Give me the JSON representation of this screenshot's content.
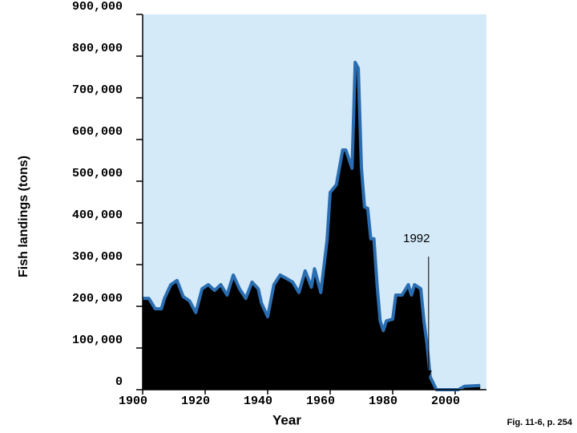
{
  "chart_data": {
    "type": "area",
    "ylabel": "Fish landings (tons)",
    "xlabel": "Year",
    "caption": "Fig. 11-6, p. 254",
    "x": [
      1900,
      1902,
      1904,
      1906,
      1907,
      1909,
      1911,
      1913,
      1915,
      1917,
      1919,
      1921,
      1923,
      1925,
      1927,
      1929,
      1931,
      1933,
      1935,
      1937,
      1938,
      1940,
      1942,
      1944,
      1946,
      1948,
      1950,
      1952,
      1954,
      1955,
      1957,
      1959,
      1960,
      1962,
      1964,
      1965,
      1967,
      1968,
      1969,
      1970,
      1971,
      1972,
      1973,
      1974,
      1975,
      1976,
      1977,
      1978,
      1980,
      1981,
      1983,
      1985,
      1986,
      1987,
      1989,
      1990,
      1991,
      1992,
      1994,
      2000,
      2001,
      2003,
      2008
    ],
    "values": [
      219000,
      219000,
      194000,
      194000,
      219000,
      252000,
      262000,
      223000,
      213000,
      185000,
      242000,
      252000,
      238000,
      252000,
      227000,
      275000,
      242000,
      219000,
      258000,
      242000,
      208000,
      175000,
      252000,
      275000,
      267000,
      258000,
      233000,
      285000,
      246000,
      290000,
      233000,
      358000,
      473000,
      492000,
      575000,
      575000,
      531000,
      785000,
      771000,
      531000,
      438000,
      435000,
      362000,
      362000,
      252000,
      165000,
      142000,
      165000,
      169000,
      227000,
      227000,
      252000,
      227000,
      252000,
      242000,
      165000,
      108000,
      31000,
      0,
      0,
      0,
      8000,
      10000
    ],
    "color": "#000000",
    "line_color": "#2a6db0",
    "background": "#d4eaf9",
    "xlim": [
      1900,
      2010
    ],
    "ylim": [
      0,
      900000
    ],
    "xticks": [
      1900,
      1920,
      1940,
      1960,
      1980,
      2000
    ],
    "yticks": [
      0,
      {
        "value": 100000,
        "label": "100,000"
      },
      {
        "value": 200000,
        "label": "200,000"
      },
      {
        "value": 300000,
        "label": "300,000"
      },
      {
        "value": 400000,
        "label": "400,000"
      },
      {
        "value": 500000,
        "label": "500,000"
      },
      {
        "value": 600000,
        "label": "600,000"
      },
      {
        "value": 700000,
        "label": "700,000"
      },
      {
        "value": 800000,
        "label": "800,000"
      },
      {
        "value": 900000,
        "label": "900,000"
      }
    ],
    "annotations": [
      {
        "text": "1992",
        "x": 1992
      }
    ]
  }
}
